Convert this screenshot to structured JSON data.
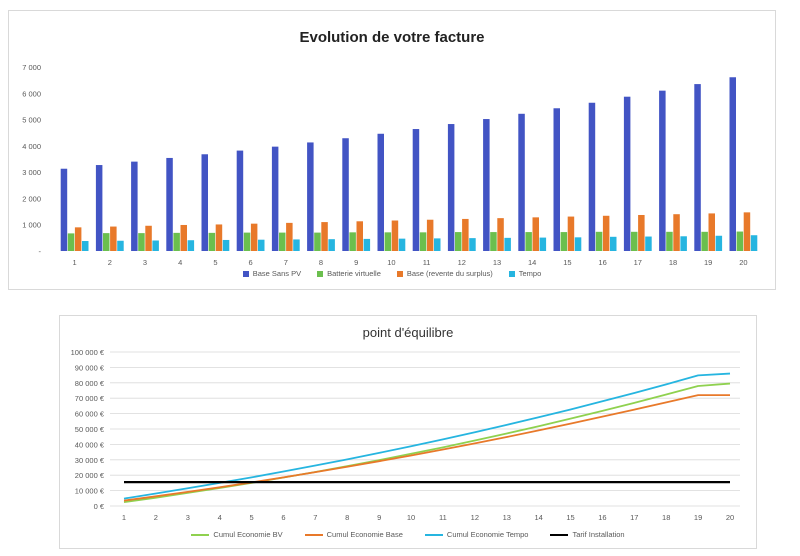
{
  "chart_data": [
    {
      "type": "bar",
      "title": "Evolution de votre facture",
      "categories": [
        "1",
        "2",
        "3",
        "4",
        "5",
        "6",
        "7",
        "8",
        "9",
        "10",
        "11",
        "12",
        "13",
        "14",
        "15",
        "16",
        "17",
        "18",
        "19",
        "20"
      ],
      "ylim": [
        0,
        7000
      ],
      "yticks": [
        0,
        1000,
        2000,
        3000,
        4000,
        5000,
        6000,
        7000
      ],
      "ytick_labels": [
        "-",
        "1 000",
        "2 000",
        "3 000",
        "4 000",
        "5 000",
        "6 000",
        "7 000"
      ],
      "grid": false,
      "legend": "bottom",
      "series": [
        {
          "name": "Base Sans PV",
          "color": "#4254c4",
          "values": [
            3130,
            3270,
            3400,
            3540,
            3680,
            3820,
            3970,
            4130,
            4290,
            4460,
            4640,
            4830,
            5020,
            5220,
            5430,
            5640,
            5870,
            6100,
            6350,
            6610
          ]
        },
        {
          "name": "Batterie virtuelle",
          "color": "#6bbf4e",
          "values": [
            670,
            680,
            680,
            690,
            690,
            700,
            700,
            700,
            710,
            710,
            710,
            720,
            720,
            720,
            720,
            730,
            730,
            730,
            730,
            740
          ]
        },
        {
          "name": "Base (revente du surplus)",
          "color": "#e8792a",
          "values": [
            900,
            930,
            960,
            990,
            1010,
            1040,
            1070,
            1100,
            1130,
            1160,
            1190,
            1220,
            1250,
            1280,
            1310,
            1340,
            1370,
            1400,
            1430,
            1470
          ]
        },
        {
          "name": "Tempo",
          "color": "#26b5e0",
          "values": [
            380,
            390,
            400,
            410,
            420,
            430,
            440,
            450,
            460,
            470,
            480,
            490,
            500,
            510,
            520,
            540,
            550,
            560,
            580,
            600
          ]
        }
      ]
    },
    {
      "type": "line",
      "title": "point d'équilibre",
      "x": [
        1,
        2,
        3,
        4,
        5,
        6,
        7,
        8,
        9,
        10,
        11,
        12,
        13,
        14,
        15,
        16,
        17,
        18,
        19,
        20
      ],
      "ylim": [
        0,
        100000
      ],
      "yticks": [
        0,
        10000,
        20000,
        30000,
        40000,
        50000,
        60000,
        70000,
        80000,
        90000,
        100000
      ],
      "ytick_labels": [
        "0 €",
        "10 000 €",
        "20 000 €",
        "30 000 €",
        "40 000 €",
        "50 000 €",
        "60 000 €",
        "70 000 €",
        "80 000 €",
        "90 000 €",
        "100 000 €"
      ],
      "grid": true,
      "legend": "bottom",
      "series": [
        {
          "name": "Cumul Economie BV",
          "color": "#8fd14f",
          "values": [
            2500,
            5400,
            8500,
            11700,
            15000,
            18500,
            22100,
            25900,
            29800,
            33900,
            38100,
            42500,
            47100,
            51800,
            56700,
            61800,
            67000,
            72400,
            77900,
            79500
          ]
        },
        {
          "name": "Cumul Economie Base",
          "color": "#e8792a",
          "values": [
            3500,
            6300,
            9200,
            12200,
            15300,
            18600,
            22000,
            25500,
            29100,
            32800,
            36700,
            40700,
            44800,
            49100,
            53500,
            58000,
            62600,
            67300,
            72000,
            72000
          ]
        },
        {
          "name": "Cumul Economie Tempo",
          "color": "#26b5e0",
          "values": [
            4800,
            8100,
            11500,
            15000,
            18600,
            22400,
            26300,
            30300,
            34500,
            38800,
            43300,
            47900,
            52700,
            57600,
            62700,
            68000,
            73400,
            79000,
            84800,
            86000
          ]
        },
        {
          "name": "Tarif Installation",
          "color": "#000000",
          "values": [
            15500,
            15500,
            15500,
            15500,
            15500,
            15500,
            15500,
            15500,
            15500,
            15500,
            15500,
            15500,
            15500,
            15500,
            15500,
            15500,
            15500,
            15500,
            15500,
            15500
          ]
        }
      ]
    }
  ]
}
